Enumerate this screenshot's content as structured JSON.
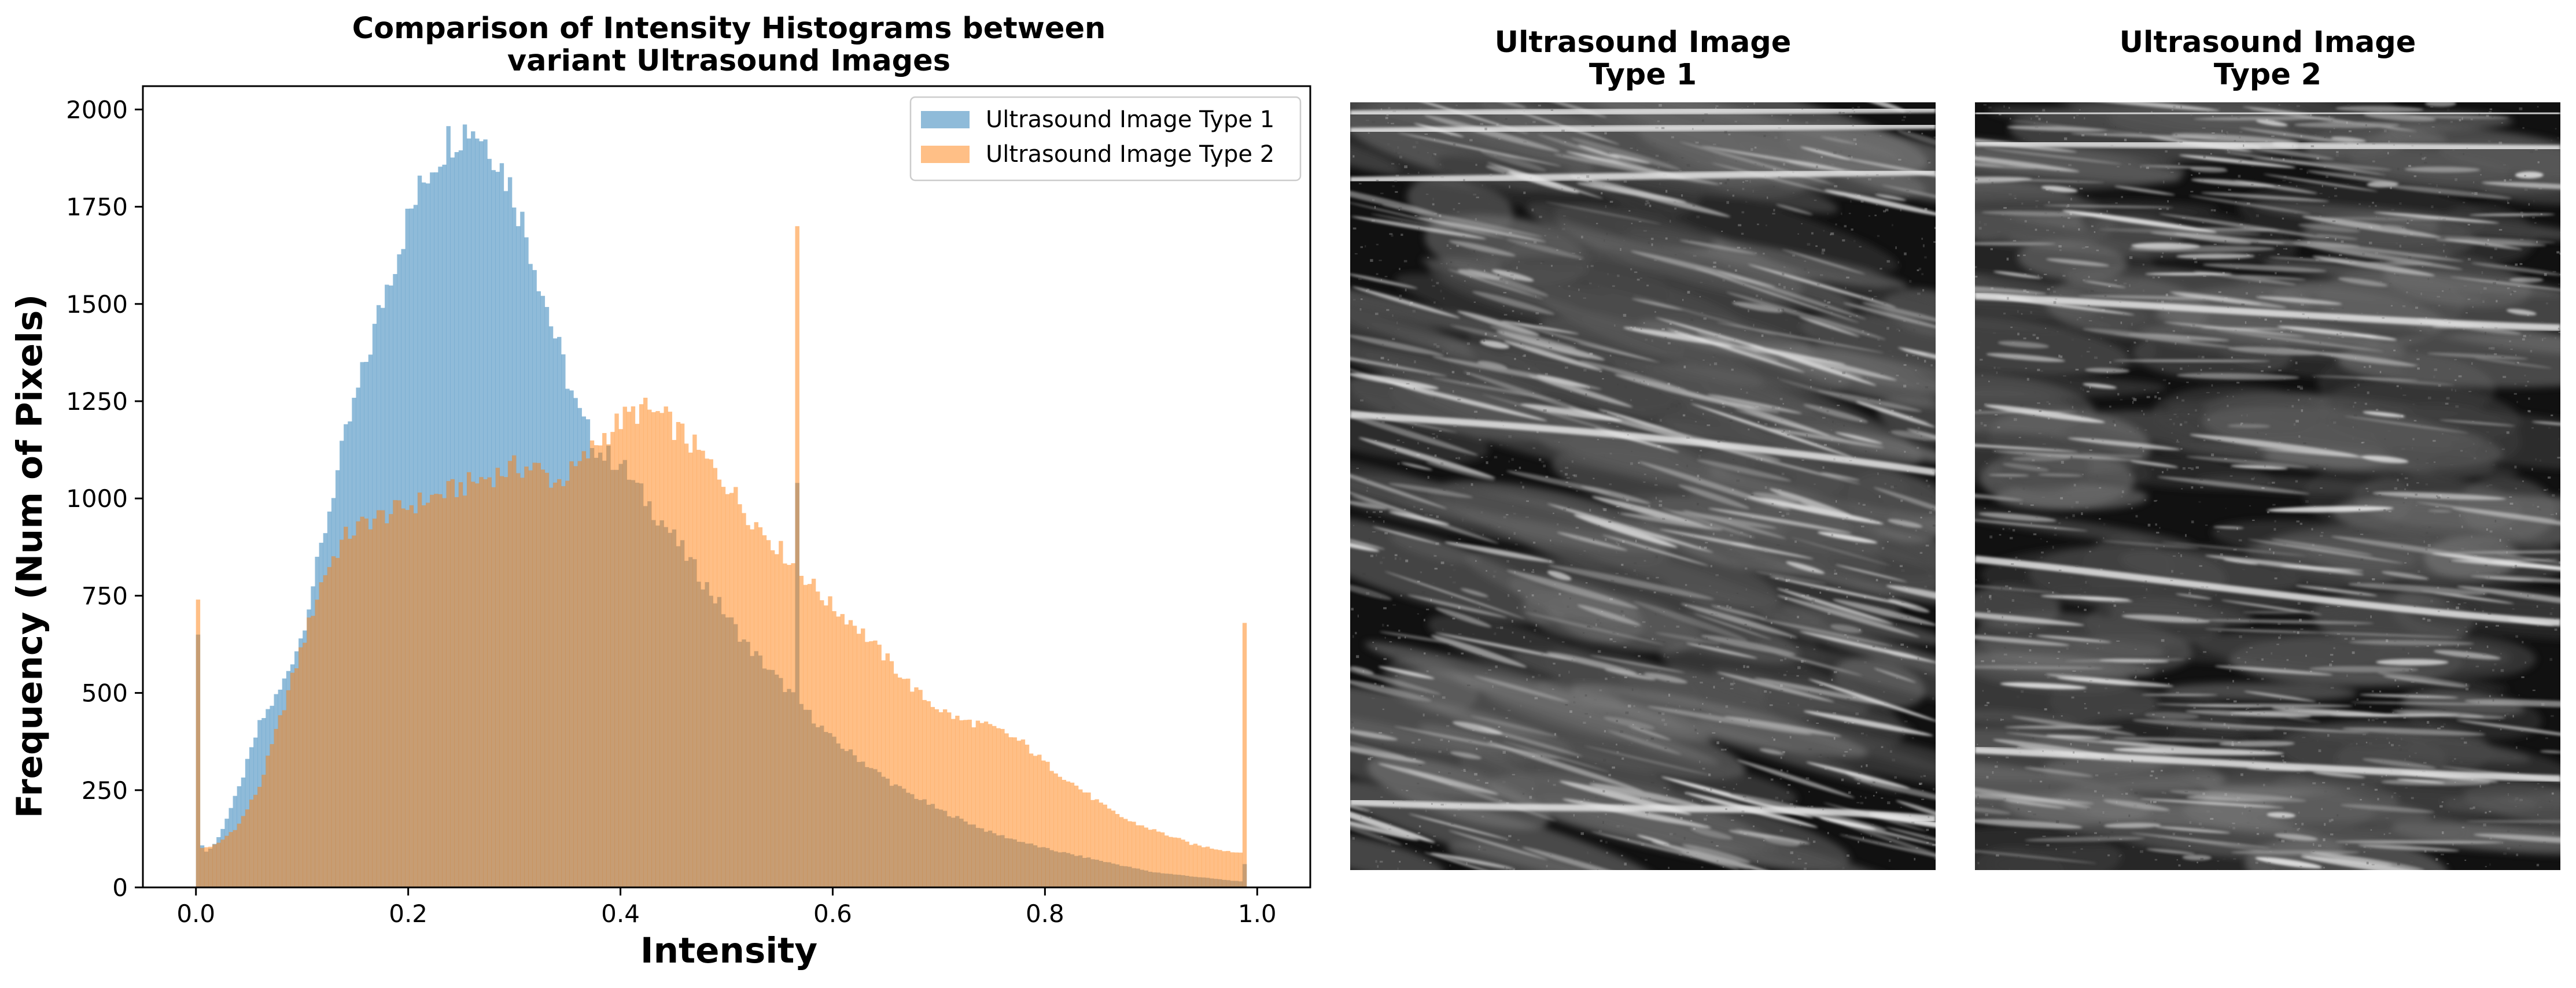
{
  "chart_data": [
    {
      "type": "histogram",
      "title": "Comparison of Intensity Histograms between\nvariant Ultrasound Images",
      "xlabel": "Intensity",
      "ylabel": "Frequency (Num of Pixels)",
      "xlim": [
        -0.05,
        1.05
      ],
      "ylim": [
        0,
        2060
      ],
      "xticks": [
        "0.0",
        "0.2",
        "0.4",
        "0.6",
        "0.8",
        "1.0"
      ],
      "yticks": [
        "0",
        "250",
        "500",
        "750",
        "1000",
        "1250",
        "1500",
        "1750",
        "2000"
      ],
      "legend_position": "upper right",
      "bins": 256,
      "bin_range": [
        0,
        0.99
      ],
      "series": [
        {
          "name": "Ultrasound Image Type 1",
          "color": "#1f77b4",
          "alpha": 0.5,
          "curve_points": [
            [
              0.0,
              650
            ],
            [
              0.004,
              120
            ],
            [
              0.01,
              90
            ],
            [
              0.02,
              120
            ],
            [
              0.04,
              250
            ],
            [
              0.06,
              420
            ],
            [
              0.08,
              510
            ],
            [
              0.1,
              650
            ],
            [
              0.12,
              900
            ],
            [
              0.14,
              1150
            ],
            [
              0.16,
              1350
            ],
            [
              0.18,
              1550
            ],
            [
              0.2,
              1720
            ],
            [
              0.22,
              1850
            ],
            [
              0.24,
              1930
            ],
            [
              0.26,
              1960
            ],
            [
              0.28,
              1900
            ],
            [
              0.3,
              1780
            ],
            [
              0.32,
              1600
            ],
            [
              0.34,
              1400
            ],
            [
              0.36,
              1220
            ],
            [
              0.38,
              1120
            ],
            [
              0.4,
              1090
            ],
            [
              0.42,
              1010
            ],
            [
              0.44,
              940
            ],
            [
              0.46,
              860
            ],
            [
              0.48,
              780
            ],
            [
              0.5,
              700
            ],
            [
              0.52,
              620
            ],
            [
              0.54,
              560
            ],
            [
              0.56,
              500
            ],
            [
              0.58,
              440
            ],
            [
              0.6,
              380
            ],
            [
              0.62,
              340
            ],
            [
              0.64,
              300
            ],
            [
              0.66,
              260
            ],
            [
              0.7,
              200
            ],
            [
              0.75,
              140
            ],
            [
              0.8,
              100
            ],
            [
              0.85,
              70
            ],
            [
              0.9,
              40
            ],
            [
              0.95,
              25
            ],
            [
              0.985,
              15
            ]
          ],
          "spikes": [
            [
              0.0,
              650
            ],
            [
              0.5655,
              1040
            ],
            [
              0.99,
              60
            ]
          ]
        },
        {
          "name": "Ultrasound Image Type 2",
          "color": "#ff7f0e",
          "alpha": 0.5,
          "curve_points": [
            [
              0.0,
              740
            ],
            [
              0.004,
              100
            ],
            [
              0.02,
              110
            ],
            [
              0.04,
              160
            ],
            [
              0.06,
              260
            ],
            [
              0.08,
              440
            ],
            [
              0.1,
              620
            ],
            [
              0.12,
              800
            ],
            [
              0.14,
              900
            ],
            [
              0.16,
              940
            ],
            [
              0.18,
              960
            ],
            [
              0.2,
              980
            ],
            [
              0.22,
              1000
            ],
            [
              0.24,
              1020
            ],
            [
              0.26,
              1040
            ],
            [
              0.28,
              1060
            ],
            [
              0.3,
              1080
            ],
            [
              0.32,
              1080
            ],
            [
              0.34,
              1040
            ],
            [
              0.36,
              1080
            ],
            [
              0.38,
              1150
            ],
            [
              0.4,
              1200
            ],
            [
              0.42,
              1230
            ],
            [
              0.44,
              1210
            ],
            [
              0.46,
              1160
            ],
            [
              0.48,
              1100
            ],
            [
              0.5,
              1040
            ],
            [
              0.52,
              960
            ],
            [
              0.54,
              900
            ],
            [
              0.56,
              840
            ],
            [
              0.58,
              780
            ],
            [
              0.6,
              720
            ],
            [
              0.62,
              680
            ],
            [
              0.64,
              620
            ],
            [
              0.66,
              560
            ],
            [
              0.68,
              500
            ],
            [
              0.7,
              460
            ],
            [
              0.72,
              430
            ],
            [
              0.74,
              420
            ],
            [
              0.76,
              400
            ],
            [
              0.78,
              370
            ],
            [
              0.8,
              320
            ],
            [
              0.82,
              280
            ],
            [
              0.84,
              240
            ],
            [
              0.86,
              200
            ],
            [
              0.88,
              170
            ],
            [
              0.9,
              150
            ],
            [
              0.92,
              130
            ],
            [
              0.94,
              110
            ],
            [
              0.96,
              100
            ],
            [
              0.98,
              90
            ],
            [
              0.985,
              90
            ]
          ],
          "spikes": [
            [
              0.0,
              740
            ],
            [
              0.5655,
              1700
            ],
            [
              0.99,
              680
            ]
          ]
        }
      ]
    }
  ],
  "panels": {
    "image1_title": "Ultrasound Image\nType 1",
    "image2_title": "Ultrasound Image\nType 2"
  },
  "colors": {
    "background": "#ffffff",
    "ultrasound_dark": "#111111",
    "ultrasound_light": "#e6e6e6"
  }
}
